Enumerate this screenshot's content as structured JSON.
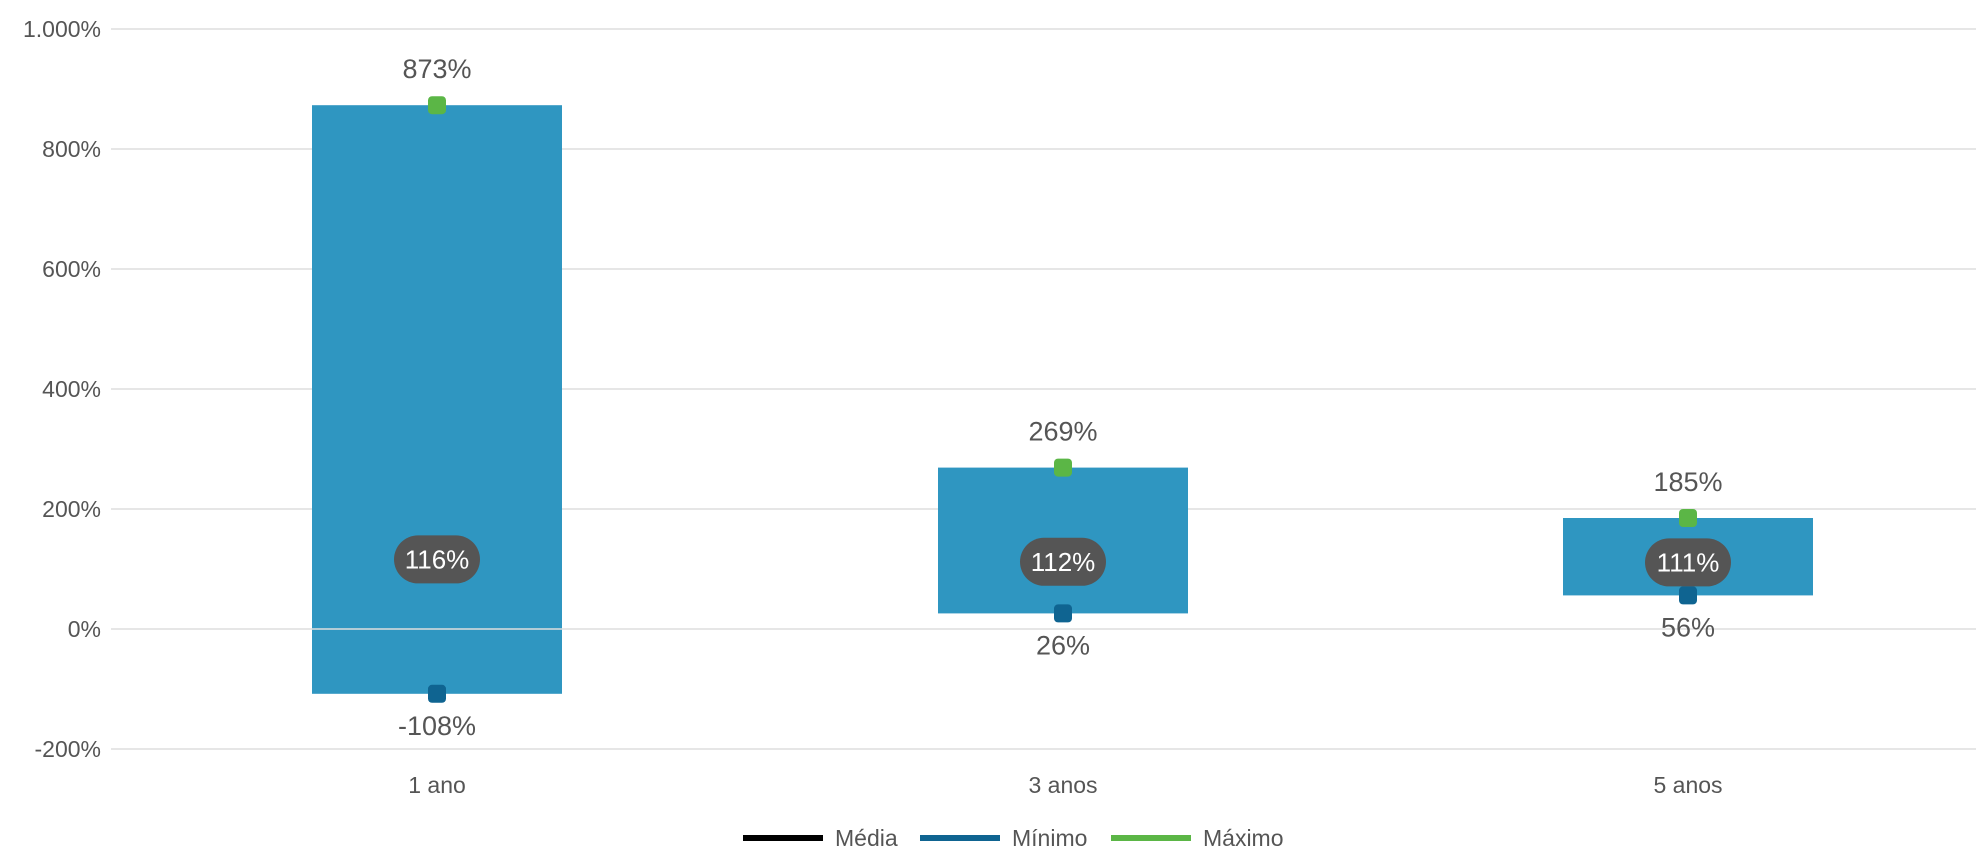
{
  "chart_data": {
    "type": "bar",
    "categories": [
      "1 ano",
      "3 anos",
      "5 anos"
    ],
    "series": [
      {
        "name": "Média",
        "values": [
          116,
          112,
          111
        ]
      },
      {
        "name": "Mínimo",
        "values": [
          -108,
          26,
          56
        ]
      },
      {
        "name": "Máximo",
        "values": [
          873,
          269,
          185
        ]
      }
    ],
    "labels": {
      "average": [
        "116%",
        "112%",
        "111%"
      ],
      "minimum": [
        "-108%",
        "26%",
        "56%"
      ],
      "maximum": [
        "873%",
        "269%",
        "185%"
      ]
    },
    "yticks": [
      -200,
      0,
      200,
      400,
      600,
      800,
      1000
    ],
    "ytick_labels": [
      "-200%",
      "0%",
      "200%",
      "400%",
      "600%",
      "800%",
      "1.000%"
    ],
    "ylim": [
      -200,
      1000
    ],
    "grid": true,
    "legend_position": "bottom",
    "legend": [
      {
        "name": "Média",
        "color": "#000000"
      },
      {
        "name": "Mínimo",
        "color": "#0f6491"
      },
      {
        "name": "Máximo",
        "color": "#5bb646"
      }
    ],
    "colors": {
      "range_bar": "#2f96c1",
      "min_marker": "#0f6491",
      "max_marker": "#5bb646",
      "avg_badge": "#555555",
      "grid": "#dddddd",
      "text": "#555555"
    }
  }
}
